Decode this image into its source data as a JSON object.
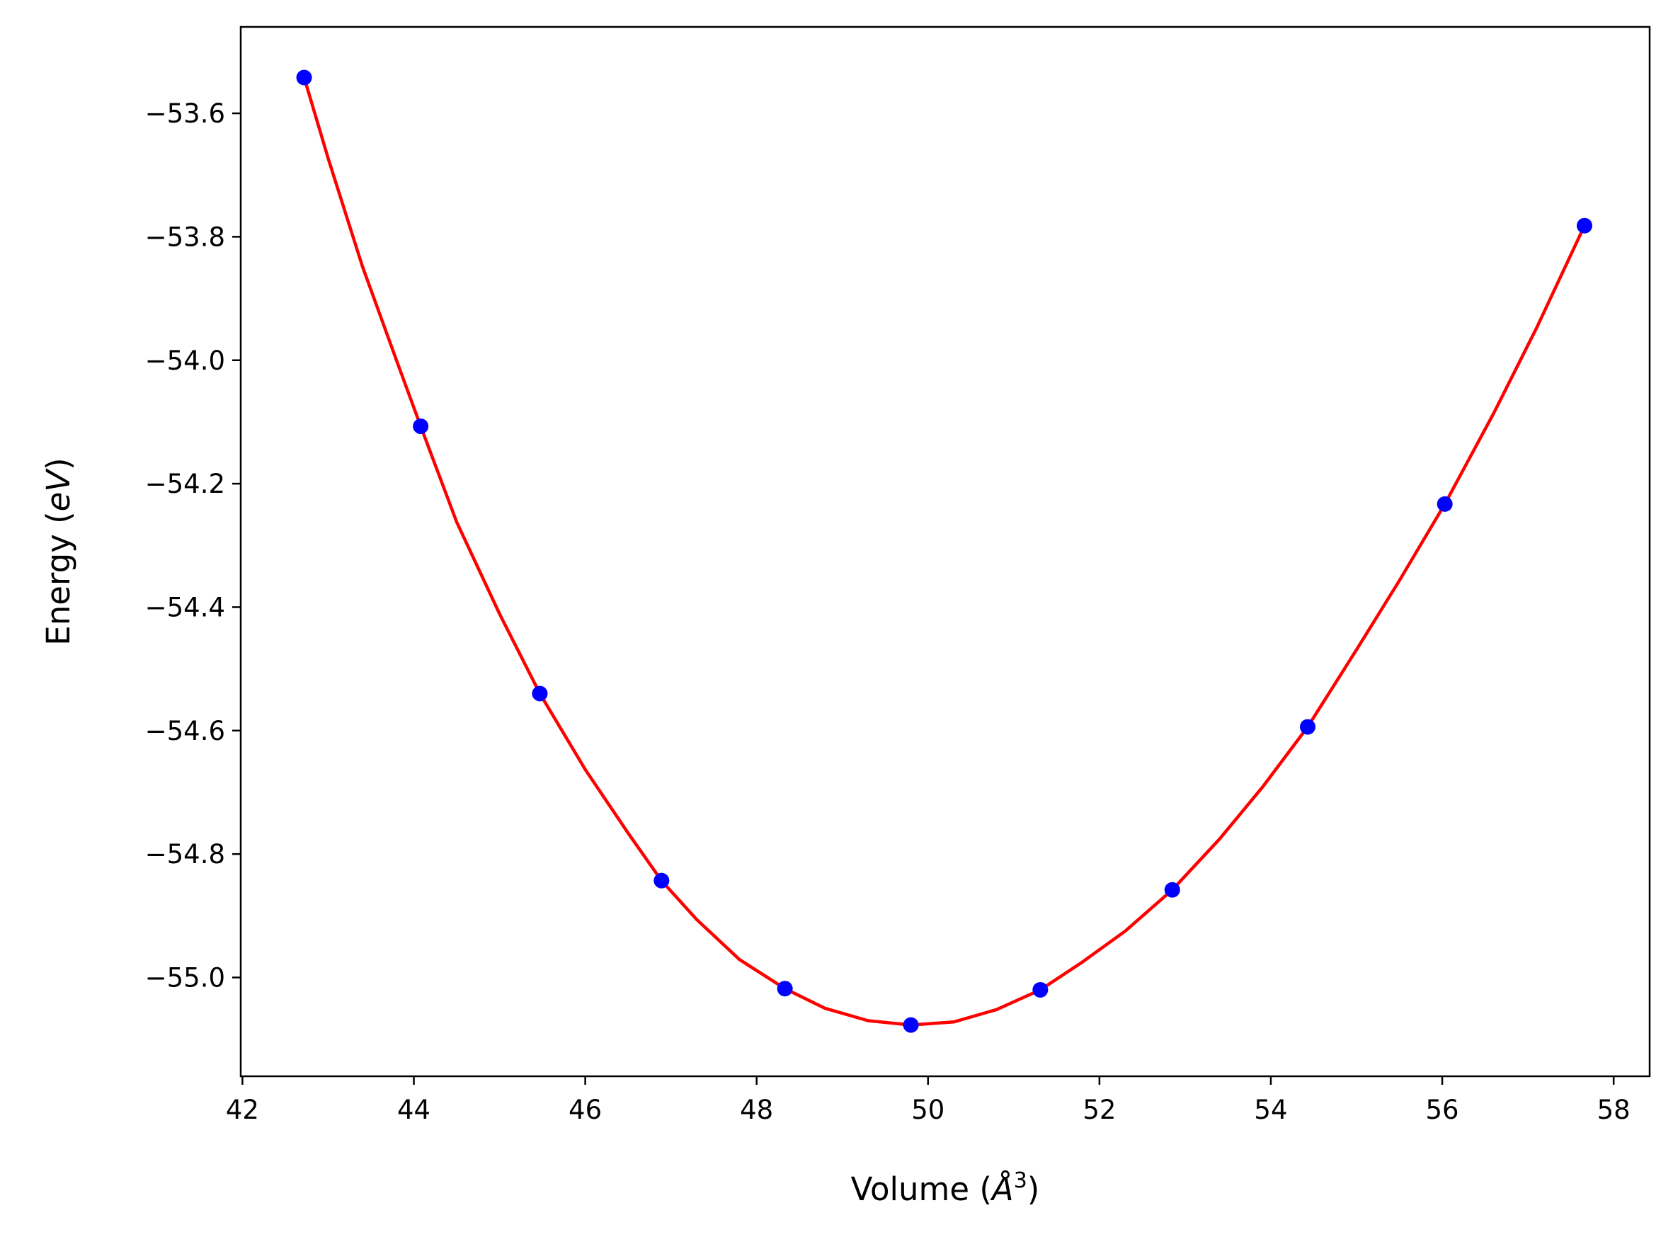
{
  "chart_data": {
    "type": "line",
    "title": "",
    "xlabel": {
      "text": "Volume (",
      "symbol": "Å",
      "superscript": "3",
      "close": ")"
    },
    "ylabel": {
      "text": "Energy (",
      "italic": "eV",
      "close": ")"
    },
    "xlim": [
      41.98,
      58.42
    ],
    "ylim": [
      -55.16,
      -53.46
    ],
    "xticks": [
      42,
      44,
      46,
      48,
      50,
      52,
      54,
      56,
      58
    ],
    "xtick_labels": [
      "42",
      "44",
      "46",
      "48",
      "50",
      "52",
      "54",
      "56",
      "58"
    ],
    "yticks": [
      -55.0,
      -54.8,
      -54.6,
      -54.4,
      -54.2,
      -54.0,
      -53.8,
      -53.6
    ],
    "ytick_labels": [
      "−55.0",
      "−54.8",
      "−54.6",
      "−54.4",
      "−54.2",
      "−54.0",
      "−53.8",
      "−53.6"
    ],
    "grid": false,
    "legend": "none",
    "series": [
      {
        "kind": "scatter",
        "color": "#0000ff",
        "x": [
          42.72,
          44.08,
          45.47,
          46.89,
          48.33,
          49.8,
          51.31,
          52.85,
          54.43,
          56.03,
          57.66
        ],
        "y": [
          -53.542,
          -54.107,
          -54.54,
          -54.843,
          -55.018,
          -55.077,
          -55.02,
          -54.858,
          -54.594,
          -54.233,
          -53.782
        ]
      },
      {
        "kind": "line",
        "color": "#ff0000",
        "x": [
          42.72,
          43.0,
          43.4,
          43.8,
          44.08,
          44.5,
          45.0,
          45.47,
          46.0,
          46.5,
          46.89,
          47.3,
          47.8,
          48.33,
          48.8,
          49.3,
          49.8,
          50.3,
          50.8,
          51.31,
          51.8,
          52.3,
          52.85,
          53.4,
          53.9,
          54.43,
          55.0,
          55.5,
          56.03,
          56.6,
          57.1,
          57.66
        ],
        "y": [
          -53.542,
          -53.673,
          -53.848,
          -54.001,
          -54.107,
          -54.262,
          -54.411,
          -54.54,
          -54.663,
          -54.766,
          -54.843,
          -54.906,
          -54.971,
          -55.018,
          -55.05,
          -55.07,
          -55.077,
          -55.072,
          -55.052,
          -55.02,
          -54.975,
          -54.925,
          -54.858,
          -54.776,
          -54.692,
          -54.594,
          -54.469,
          -54.357,
          -54.233,
          -54.086,
          -53.948,
          -53.782
        ]
      }
    ]
  }
}
